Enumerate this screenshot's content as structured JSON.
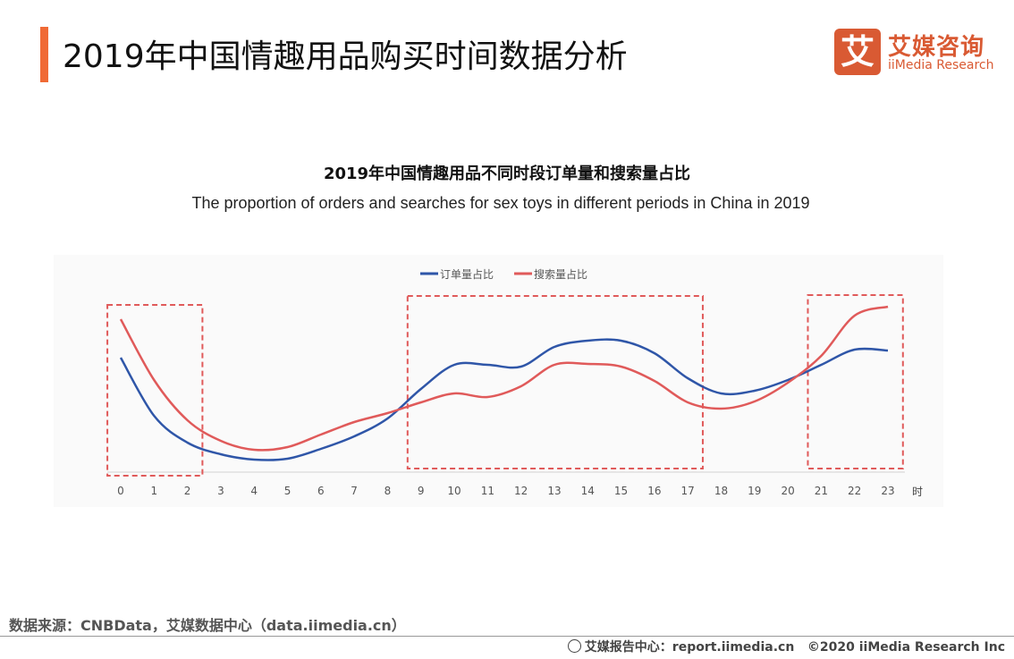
{
  "header": {
    "title": "2019年中国情趣用品购买时间数据分析",
    "accent_color": "#f06a35"
  },
  "logo": {
    "mark": "艾",
    "cn": "艾媒咨询",
    "en": "iiMedia Research",
    "color": "#d95a33"
  },
  "chart_data": {
    "type": "line",
    "title": "2019年中国情趣用品不同时段订单量和搜索量占比",
    "subtitle": "The proportion of orders and searches for sex toys in different periods in China in 2019",
    "x": [
      0,
      1,
      2,
      3,
      4,
      5,
      6,
      7,
      8,
      9,
      10,
      11,
      12,
      13,
      14,
      15,
      16,
      17,
      18,
      19,
      20,
      21,
      22,
      23
    ],
    "x_tick_labels": [
      "0",
      "1",
      "2",
      "3",
      "4",
      "5",
      "6",
      "7",
      "8",
      "9",
      "10",
      "11",
      "12",
      "13",
      "14",
      "15",
      "16",
      "17",
      "18",
      "19",
      "20",
      "21",
      "22",
      "23"
    ],
    "xlabel": "时",
    "ylabel": "",
    "ylim": [
      0,
      100
    ],
    "y_axis_shown": false,
    "grid": false,
    "legend_position": "top",
    "series": [
      {
        "name": "订单量占比",
        "color": "#2f56a8",
        "values": [
          64,
          31.5,
          16.5,
          10,
          7,
          7.5,
          13,
          20,
          30,
          46.5,
          60,
          60,
          59,
          70,
          73.5,
          73.5,
          66.5,
          52.5,
          44,
          45.5,
          51.5,
          60,
          68.5,
          68
        ]
      },
      {
        "name": "搜索量占比",
        "color": "#e05a5a",
        "values": [
          85.5,
          51.5,
          29,
          17.5,
          12.5,
          14,
          21,
          28,
          33,
          39,
          44,
          42,
          48,
          60,
          60.5,
          59,
          51,
          39,
          35.5,
          39.5,
          50,
          65,
          87.5,
          92.5
        ]
      }
    ],
    "highlight_ranges": [
      [
        0,
        2
      ],
      [
        9,
        17
      ],
      [
        21,
        23
      ]
    ],
    "highlight_color": "#e05a5a"
  },
  "footer": {
    "source": "数据来源：CNBData，艾媒数据中心（data.iimedia.cn）",
    "site": "艾媒报告中心：report.iimedia.cn",
    "copyright": "©2020  iiMedia Research  Inc"
  }
}
